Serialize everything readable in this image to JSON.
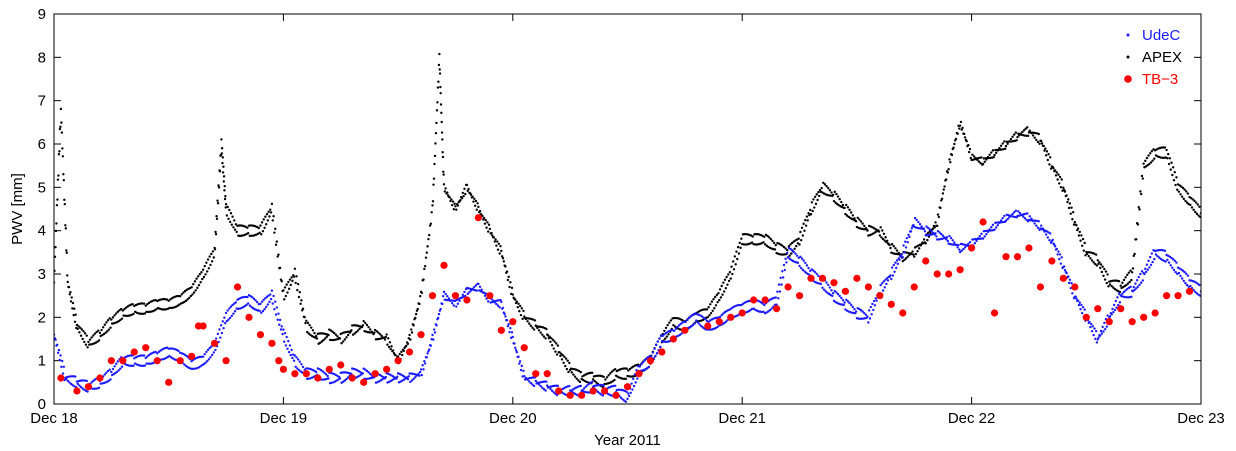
{
  "chart_data": {
    "type": "scatter",
    "xlabel": "Year 2011",
    "ylabel": "PWV [mm]",
    "xlim": [
      0,
      5
    ],
    "ylim": [
      0,
      9
    ],
    "xticks": [
      {
        "value": 0,
        "label": "Dec 18"
      },
      {
        "value": 1,
        "label": "Dec 19"
      },
      {
        "value": 2,
        "label": "Dec 20"
      },
      {
        "value": 3,
        "label": "Dec 21"
      },
      {
        "value": 4,
        "label": "Dec 22"
      },
      {
        "value": 5,
        "label": "Dec 23"
      }
    ],
    "yticks": [
      0,
      1,
      2,
      3,
      4,
      5,
      6,
      7,
      8,
      9
    ],
    "legend_position": "top-right",
    "series": [
      {
        "name": "UdeC",
        "color": "#1a1aff",
        "marker": "dot",
        "x": [
          0.0,
          0.05,
          0.1,
          0.15,
          0.2,
          0.25,
          0.3,
          0.35,
          0.4,
          0.45,
          0.5,
          0.55,
          0.6,
          0.65,
          0.7,
          0.75,
          0.8,
          0.85,
          0.9,
          0.95,
          1.0,
          1.05,
          1.1,
          1.15,
          1.2,
          1.25,
          1.3,
          1.35,
          1.4,
          1.45,
          1.5,
          1.55,
          1.6,
          1.65,
          1.7,
          1.75,
          1.8,
          1.85,
          1.9,
          1.95,
          2.0,
          2.05,
          2.1,
          2.15,
          2.2,
          2.25,
          2.3,
          2.35,
          2.4,
          2.45,
          2.5,
          2.55,
          2.6,
          2.65,
          2.7,
          2.75,
          2.8,
          2.85,
          2.9,
          2.95,
          3.0,
          3.05,
          3.1,
          3.15,
          3.2,
          3.25,
          3.3,
          3.35,
          3.4,
          3.45,
          3.5,
          3.55,
          3.6,
          3.65,
          3.7,
          3.75,
          3.8,
          3.85,
          3.9,
          3.95,
          4.0,
          4.05,
          4.1,
          4.15,
          4.2,
          4.25,
          4.3,
          4.35,
          4.4,
          4.45,
          4.5,
          4.55,
          4.6,
          4.65,
          4.7,
          4.75,
          4.8,
          4.85,
          4.9,
          4.95,
          5.0
        ],
        "y": [
          1.6,
          0.6,
          0.5,
          0.4,
          0.5,
          0.7,
          1.0,
          1.0,
          1.0,
          1.1,
          1.2,
          1.1,
          0.9,
          1.0,
          1.3,
          2.0,
          2.3,
          2.4,
          2.2,
          2.5,
          1.6,
          1.0,
          0.7,
          0.7,
          0.6,
          0.6,
          0.7,
          0.7,
          0.6,
          0.6,
          0.6,
          0.6,
          0.7,
          1.5,
          2.5,
          2.3,
          2.6,
          2.7,
          2.4,
          2.3,
          1.5,
          0.6,
          0.5,
          0.4,
          0.3,
          0.3,
          0.3,
          0.4,
          0.3,
          0.3,
          0.15,
          0.8,
          1.0,
          1.5,
          1.6,
          1.8,
          2.0,
          1.8,
          1.9,
          2.1,
          2.2,
          2.3,
          2.2,
          2.4,
          3.5,
          3.3,
          3.0,
          2.8,
          2.5,
          2.3,
          2.1,
          2.0,
          2.6,
          3.0,
          3.5,
          4.2,
          4.0,
          3.9,
          3.8,
          3.6,
          3.7,
          3.9,
          4.1,
          4.3,
          4.4,
          4.3,
          4.1,
          3.8,
          3.2,
          2.5,
          2.0,
          1.5,
          2.0,
          2.5,
          2.6,
          3.0,
          3.5,
          3.4,
          3.1,
          2.8,
          2.6
        ]
      },
      {
        "name": "APEX",
        "color": "#000000",
        "marker": "dot",
        "x": [
          0.0,
          0.03,
          0.06,
          0.1,
          0.15,
          0.2,
          0.25,
          0.3,
          0.35,
          0.4,
          0.45,
          0.5,
          0.55,
          0.6,
          0.65,
          0.7,
          0.73,
          0.75,
          0.8,
          0.85,
          0.9,
          0.95,
          1.0,
          1.05,
          1.1,
          1.15,
          1.2,
          1.25,
          1.3,
          1.35,
          1.4,
          1.45,
          1.5,
          1.55,
          1.6,
          1.65,
          1.68,
          1.7,
          1.75,
          1.8,
          1.85,
          1.9,
          1.95,
          2.0,
          2.05,
          2.1,
          2.15,
          2.2,
          2.25,
          2.3,
          2.35,
          2.4,
          2.45,
          2.5,
          2.55,
          2.6,
          2.65,
          2.7,
          2.75,
          2.8,
          2.85,
          2.9,
          2.95,
          3.0,
          3.05,
          3.1,
          3.15,
          3.2,
          3.25,
          3.3,
          3.35,
          3.4,
          3.45,
          3.5,
          3.55,
          3.6,
          3.65,
          3.7,
          3.75,
          3.8,
          3.85,
          3.9,
          3.95,
          4.0,
          4.05,
          4.1,
          4.15,
          4.2,
          4.25,
          4.3,
          4.35,
          4.4,
          4.45,
          4.5,
          4.55,
          4.6,
          4.65,
          4.7,
          4.75,
          4.8,
          4.85,
          4.9,
          4.95,
          5.0
        ],
        "y": [
          2.8,
          6.8,
          2.8,
          1.8,
          1.4,
          1.6,
          1.9,
          2.1,
          2.2,
          2.2,
          2.3,
          2.3,
          2.4,
          2.6,
          3.0,
          3.5,
          6.0,
          4.5,
          4.0,
          4.0,
          4.0,
          4.5,
          2.5,
          3.0,
          1.8,
          1.5,
          1.6,
          1.5,
          1.7,
          1.8,
          1.6,
          1.5,
          1.0,
          1.5,
          2.5,
          4.5,
          8.0,
          5.0,
          4.5,
          5.0,
          4.5,
          4.0,
          3.5,
          2.5,
          2.0,
          1.8,
          1.6,
          1.2,
          0.8,
          0.6,
          0.6,
          0.5,
          0.7,
          0.7,
          0.8,
          1.0,
          1.5,
          1.9,
          1.8,
          2.0,
          2.1,
          2.5,
          3.0,
          3.8,
          3.8,
          3.8,
          3.6,
          3.5,
          3.8,
          4.5,
          5.0,
          4.8,
          4.5,
          4.2,
          4.0,
          4.0,
          3.6,
          3.4,
          3.5,
          3.8,
          4.2,
          5.5,
          6.5,
          5.7,
          5.6,
          5.8,
          6.0,
          6.2,
          6.3,
          6.1,
          5.5,
          5.0,
          4.2,
          3.5,
          3.3,
          2.8,
          2.7,
          3.0,
          5.5,
          5.8,
          5.8,
          5.0,
          4.7,
          4.4
        ]
      },
      {
        "name": "TB−3",
        "color": "#ff0000",
        "marker": "circle",
        "x": [
          0.03,
          0.1,
          0.15,
          0.2,
          0.25,
          0.3,
          0.35,
          0.4,
          0.45,
          0.5,
          0.55,
          0.6,
          0.63,
          0.65,
          0.7,
          0.75,
          0.8,
          0.85,
          0.9,
          0.95,
          0.98,
          1.0,
          1.05,
          1.1,
          1.15,
          1.2,
          1.25,
          1.3,
          1.35,
          1.4,
          1.45,
          1.5,
          1.55,
          1.6,
          1.65,
          1.7,
          1.75,
          1.8,
          1.85,
          1.9,
          1.95,
          2.0,
          2.05,
          2.1,
          2.15,
          2.2,
          2.25,
          2.3,
          2.35,
          2.4,
          2.45,
          2.5,
          2.55,
          2.6,
          2.65,
          2.7,
          2.75,
          2.85,
          2.9,
          2.95,
          3.0,
          3.05,
          3.1,
          3.15,
          3.2,
          3.25,
          3.3,
          3.35,
          3.4,
          3.45,
          3.5,
          3.55,
          3.6,
          3.65,
          3.7,
          3.75,
          3.8,
          3.85,
          3.9,
          3.95,
          4.0,
          4.05,
          4.1,
          4.15,
          4.2,
          4.25,
          4.3,
          4.35,
          4.4,
          4.45,
          4.5,
          4.55,
          4.6,
          4.65,
          4.7,
          4.75,
          4.8,
          4.85,
          4.9,
          4.95
        ],
        "y": [
          0.6,
          0.3,
          0.4,
          0.6,
          1.0,
          1.0,
          1.2,
          1.3,
          1.0,
          0.5,
          1.0,
          1.1,
          1.8,
          1.8,
          1.4,
          1.0,
          2.7,
          2.0,
          1.6,
          1.4,
          1.0,
          0.8,
          0.7,
          0.7,
          0.6,
          0.8,
          0.9,
          0.6,
          0.5,
          0.7,
          0.8,
          1.0,
          1.2,
          1.6,
          2.5,
          3.2,
          2.5,
          2.4,
          4.3,
          2.5,
          1.7,
          1.9,
          1.3,
          0.7,
          0.7,
          0.3,
          0.2,
          0.2,
          0.3,
          0.3,
          0.2,
          0.4,
          0.7,
          1.0,
          1.2,
          1.5,
          1.7,
          1.8,
          1.9,
          2.0,
          2.1,
          2.4,
          2.4,
          2.2,
          2.7,
          2.5,
          2.9,
          2.9,
          2.8,
          2.6,
          2.9,
          2.7,
          2.5,
          2.3,
          2.1,
          2.7,
          3.3,
          3.0,
          3.0,
          3.1,
          3.6,
          4.2,
          2.1,
          3.4,
          3.4,
          3.6,
          2.7,
          3.3,
          2.9,
          2.7,
          2.0,
          2.2,
          1.9,
          2.2,
          1.9,
          2.0,
          2.1,
          2.5,
          2.5,
          2.6
        ]
      }
    ]
  }
}
